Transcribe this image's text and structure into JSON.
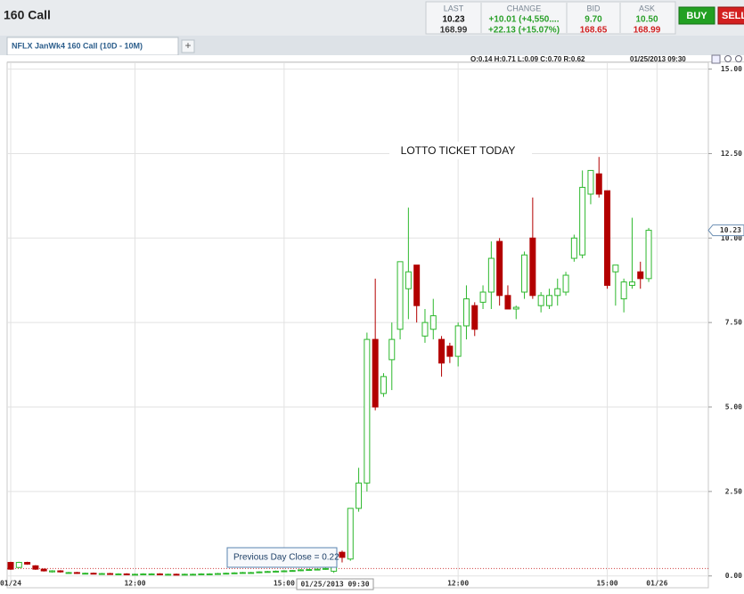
{
  "header": {
    "title": "160 Call",
    "quote": [
      {
        "label": "LAST",
        "values": [
          "10.23",
          "168.99"
        ]
      },
      {
        "label": "CHANGE",
        "values": [
          "+10.01 (+4,550....",
          "+22.13 (+15.07%)"
        ]
      },
      {
        "label": "BID",
        "values": [
          "9.70",
          "168.65"
        ]
      },
      {
        "label": "ASK",
        "values": [
          "10.50",
          "168.99"
        ]
      }
    ],
    "buttons": [
      "BUY",
      "SELL"
    ]
  },
  "tab": {
    "title": "NFLX JanWk4 160 Call (10D - 10M)",
    "add": "+"
  },
  "chart_data": {
    "type": "candlestick",
    "info": "O:0.14 H:0.71 L:0.09 C:0.70 R:0.62",
    "timestamp": "01/25/2013 09:30",
    "annotation": "LOTTO TICKET TODAY",
    "prev_close": {
      "value": 0.22,
      "label": "Previous Day Close = 0.22"
    },
    "last_price": 10.23,
    "up_color": "#2db82d",
    "down_color": "#b30000",
    "open": [
      0.4,
      0.25,
      0.4,
      0.3,
      0.2,
      0.12,
      0.15,
      0.1,
      0.1,
      0.08,
      0.08,
      0.07,
      0.07,
      0.06,
      0.06,
      0.05,
      0.05,
      0.06,
      0.06,
      0.05,
      0.05,
      0.04,
      0.05,
      0.05,
      0.06,
      0.06,
      0.07,
      0.08,
      0.09,
      0.1,
      0.1,
      0.12,
      0.13,
      0.14,
      0.15,
      0.16,
      0.18,
      0.19,
      0.2,
      0.14,
      0.7,
      0.5,
      2.0,
      2.75,
      7.0,
      5.4,
      6.4,
      7.3,
      8.5,
      9.2,
      7.1,
      7.3,
      7.0,
      6.8,
      6.5,
      7.4,
      8.0,
      8.1,
      8.4,
      9.9,
      8.3,
      7.9,
      8.4,
      10.0,
      8.0,
      8.0,
      8.3,
      8.4,
      9.4,
      9.5,
      11.3,
      11.9,
      11.4,
      9.0,
      8.2,
      8.6,
      9.0,
      8.8
    ],
    "high": [
      0.42,
      0.42,
      0.42,
      0.32,
      0.22,
      0.17,
      0.17,
      0.12,
      0.12,
      0.1,
      0.1,
      0.09,
      0.09,
      0.08,
      0.08,
      0.07,
      0.08,
      0.08,
      0.08,
      0.07,
      0.07,
      0.07,
      0.07,
      0.08,
      0.08,
      0.09,
      0.1,
      0.11,
      0.12,
      0.12,
      0.14,
      0.15,
      0.16,
      0.17,
      0.18,
      0.2,
      0.21,
      0.22,
      0.24,
      0.71,
      0.75,
      2.0,
      3.2,
      7.2,
      8.8,
      6.0,
      7.5,
      9.3,
      10.9,
      9.2,
      7.9,
      8.2,
      7.1,
      6.9,
      7.5,
      8.6,
      8.1,
      8.6,
      9.9,
      10.0,
      8.6,
      8.0,
      9.6,
      11.2,
      8.4,
      8.5,
      8.8,
      9.0,
      10.1,
      12.0,
      12.0,
      12.4,
      11.4,
      9.2,
      8.8,
      10.6,
      9.3,
      10.3
    ],
    "low": [
      0.18,
      0.23,
      0.33,
      0.18,
      0.13,
      0.1,
      0.1,
      0.08,
      0.06,
      0.06,
      0.05,
      0.05,
      0.04,
      0.04,
      0.03,
      0.03,
      0.03,
      0.04,
      0.03,
      0.03,
      0.02,
      0.02,
      0.03,
      0.03,
      0.04,
      0.04,
      0.05,
      0.06,
      0.07,
      0.08,
      0.08,
      0.1,
      0.11,
      0.12,
      0.13,
      0.14,
      0.16,
      0.17,
      0.18,
      0.09,
      0.4,
      0.45,
      1.9,
      2.5,
      4.9,
      5.3,
      5.5,
      7.0,
      7.6,
      7.5,
      6.9,
      7.0,
      5.9,
      6.3,
      6.2,
      7.0,
      7.1,
      7.9,
      7.9,
      8.0,
      7.9,
      7.6,
      8.2,
      8.2,
      7.8,
      7.9,
      8.0,
      8.3,
      9.3,
      9.4,
      11.0,
      11.2,
      8.5,
      8.0,
      7.8,
      8.5,
      8.5,
      8.7
    ],
    "close": [
      0.2,
      0.4,
      0.35,
      0.2,
      0.15,
      0.15,
      0.12,
      0.1,
      0.08,
      0.08,
      0.07,
      0.07,
      0.06,
      0.06,
      0.05,
      0.05,
      0.06,
      0.06,
      0.05,
      0.05,
      0.04,
      0.05,
      0.05,
      0.06,
      0.06,
      0.07,
      0.08,
      0.09,
      0.1,
      0.1,
      0.12,
      0.13,
      0.14,
      0.15,
      0.16,
      0.18,
      0.19,
      0.2,
      0.22,
      0.7,
      0.55,
      2.0,
      2.75,
      7.0,
      5.0,
      5.9,
      7.0,
      9.3,
      9.0,
      8.0,
      7.5,
      7.7,
      6.3,
      6.5,
      7.4,
      8.2,
      7.3,
      8.4,
      9.4,
      8.3,
      7.9,
      7.95,
      9.5,
      8.3,
      8.3,
      8.3,
      8.5,
      8.9,
      10.0,
      11.5,
      12.0,
      11.3,
      8.6,
      9.2,
      8.7,
      8.7,
      8.8,
      10.23
    ],
    "xlim": [
      -0.43,
      84.2
    ],
    "xticks": [
      {
        "value": 0,
        "label": "01/24"
      },
      {
        "value": 15,
        "label": "12:00"
      },
      {
        "value": 33,
        "label": "15:00"
      },
      {
        "value": 54,
        "label": "12:00"
      },
      {
        "value": 72,
        "label": "15:00"
      },
      {
        "value": 78,
        "label": "01/26"
      }
    ],
    "ylim": [
      -0.35,
      15.2
    ],
    "yticks": [
      {
        "value": 0,
        "label": "0.00"
      },
      {
        "value": 2.5,
        "label": "2.50"
      },
      {
        "value": 5,
        "label": "5.00"
      },
      {
        "value": 7.5,
        "label": "7.50"
      },
      {
        "value": 10,
        "label": "10.00"
      },
      {
        "value": 12.5,
        "label": "12.50"
      },
      {
        "value": 15,
        "label": "15.00"
      }
    ],
    "grid": true
  }
}
